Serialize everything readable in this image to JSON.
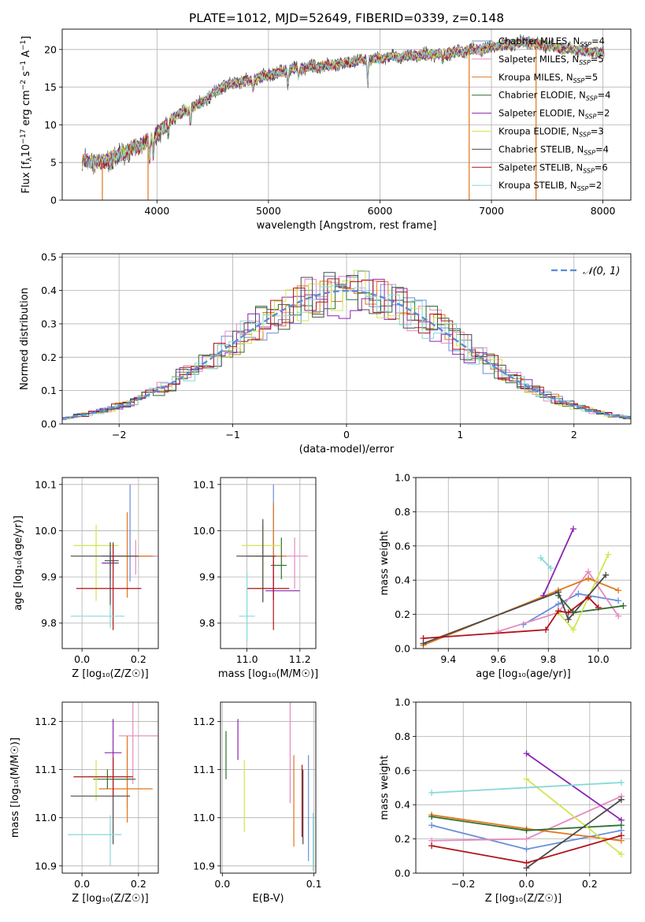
{
  "title": "PLATE=1012, MJD=52649, FIBERID=0339, z=0.148",
  "legend_top": [
    {
      "label": "Chabrier MILES, N",
      "sub": "SSP",
      "tail": "=4",
      "color": "#6a8fd8"
    },
    {
      "label": "Salpeter MILES, N",
      "sub": "SSP",
      "tail": "=5",
      "color": "#e58ac2"
    },
    {
      "label": "Kroupa MILES, N",
      "sub": "SSP",
      "tail": "=5",
      "color": "#e1761a"
    },
    {
      "label": "Chabrier ELODIE, N",
      "sub": "SSP",
      "tail": "=4",
      "color": "#2f6f2f"
    },
    {
      "label": "Salpeter ELODIE, N",
      "sub": "SSP",
      "tail": "=2",
      "color": "#8b25b0"
    },
    {
      "label": "Kroupa ELODIE, N",
      "sub": "SSP",
      "tail": "=3",
      "color": "#cfe650"
    },
    {
      "label": "Chabrier STELIB, N",
      "sub": "SSP",
      "tail": "=4",
      "color": "#4a4a4a"
    },
    {
      "label": "Salpeter STELIB, N",
      "sub": "SSP",
      "tail": "=6",
      "color": "#b1121a"
    },
    {
      "label": "Kroupa STELIB, N",
      "sub": "SSP",
      "tail": "=2",
      "color": "#86d8d8"
    }
  ],
  "legend_hist": "𝒩(0, 1)",
  "chart_data": [
    {
      "id": "spectrum",
      "type": "line",
      "xlabel": "wavelength [Angstrom, rest frame]",
      "ylabel": "Flux [f",
      "ylabel_parts": {
        "a": "Flux [f",
        "b": "λ",
        "c": "10",
        "d": "−17",
        "e": " erg cm",
        "f": "−2",
        "g": " s",
        "h": "−1",
        "i": " A",
        "j": "−1",
        "k": "]"
      },
      "xlim": [
        3150,
        8250
      ],
      "ylim": [
        0,
        22.7
      ],
      "xticks": [
        4000,
        5000,
        6000,
        7000,
        8000
      ],
      "yticks": [
        0,
        5,
        10,
        15,
        20
      ],
      "continuum_anchors": [
        [
          3330,
          5.3
        ],
        [
          3500,
          5.0
        ],
        [
          3700,
          6.2
        ],
        [
          3880,
          7.5
        ],
        [
          4000,
          8.8
        ],
        [
          4150,
          11.0
        ],
        [
          4400,
          13.0
        ],
        [
          4600,
          15.2
        ],
        [
          4900,
          16.2
        ],
        [
          5200,
          17.4
        ],
        [
          5500,
          17.8
        ],
        [
          5800,
          18.5
        ],
        [
          6100,
          19.0
        ],
        [
          6400,
          19.3
        ],
        [
          6700,
          19.6
        ],
        [
          7000,
          20.3
        ],
        [
          7300,
          21.0
        ],
        [
          7500,
          20.5
        ],
        [
          7800,
          19.9
        ],
        [
          8010,
          19.5
        ]
      ],
      "absorption_lines": [
        [
          3933,
          -2.5
        ],
        [
          3968,
          -2.5
        ],
        [
          4101,
          -1.5
        ],
        [
          4300,
          -2.0
        ],
        [
          4861,
          -1.2
        ],
        [
          5175,
          -2.0
        ],
        [
          5270,
          -1.0
        ],
        [
          5890,
          -3.0
        ],
        [
          6563,
          -1.0
        ]
      ],
      "drop_lines_x": [
        3510,
        3920,
        6800,
        7400
      ]
    },
    {
      "id": "residual_hist",
      "type": "histogram",
      "xlabel": "(data-model)/error",
      "ylabel": "Normed distribution",
      "xlim": [
        -2.5,
        2.5
      ],
      "ylim": [
        0,
        0.51
      ],
      "xticks": [
        -2,
        -1,
        0,
        1,
        2
      ],
      "yticks": [
        0.0,
        0.1,
        0.2,
        0.3,
        0.4,
        0.5
      ],
      "bin_width": 0.1,
      "peak_values": [
        0.49,
        0.46,
        0.44,
        0.43,
        0.42
      ],
      "reference": "normal",
      "reference_mu": 0,
      "reference_sigma": 1
    },
    {
      "id": "age_vs_Z",
      "type": "errorbar",
      "xlabel": "Z [log₁₀(Z/Z☉)]",
      "ylabel": "age  [log₁₀(age/yr)]",
      "xlim": [
        -0.07,
        0.27
      ],
      "ylim": [
        9.745,
        10.115
      ],
      "xticks": [
        0.0,
        0.2
      ],
      "yticks": [
        9.8,
        9.9,
        10.0,
        10.1
      ],
      "points": [
        {
          "x": 0.17,
          "y": 9.945,
          "xerr": [
            0.1,
            0.09
          ],
          "yerr": [
            0.055,
            0.155
          ]
        },
        {
          "x": 0.19,
          "y": 9.945,
          "xerr": [
            0.11,
            0.08
          ],
          "yerr": [
            0.04,
            0.035
          ]
        },
        {
          "x": 0.16,
          "y": 9.945,
          "xerr": [
            0.06,
            0.09
          ],
          "yerr": [
            0.09,
            0.095
          ]
        },
        {
          "x": 0.11,
          "y": 9.935,
          "xerr": [
            0.03,
            0.02
          ],
          "yerr": [
            0.025,
            0.04
          ]
        },
        {
          "x": 0.1,
          "y": 9.93,
          "xerr": [
            0.03,
            0.03
          ],
          "yerr": [
            0.035,
            0.025
          ]
        },
        {
          "x": 0.05,
          "y": 9.968,
          "xerr": [
            0.08,
            0.08
          ],
          "yerr": [
            0.12,
            0.045
          ]
        },
        {
          "x": 0.1,
          "y": 9.945,
          "xerr": [
            0.14,
            0.1
          ],
          "yerr": [
            0.11,
            0.03
          ]
        },
        {
          "x": 0.11,
          "y": 9.875,
          "xerr": [
            0.13,
            0.1
          ],
          "yerr": [
            0.09,
            0.095
          ]
        },
        {
          "x": 0.1,
          "y": 9.815,
          "xerr": [
            0.14,
            0.05
          ],
          "yerr": [
            0.025,
            0.025
          ]
        }
      ]
    },
    {
      "id": "age_vs_mass",
      "type": "errorbar",
      "xlabel": "mass [log₁₀(M/M☉)]",
      "ylabel": "",
      "xlim": [
        10.9,
        11.26
      ],
      "ylim": [
        9.745,
        10.115
      ],
      "xticks": [
        11.0,
        11.2
      ],
      "yticks": [
        9.8,
        9.9,
        10.0,
        10.1
      ],
      "points": [
        {
          "x": 11.1,
          "y": 9.945,
          "xerr": [
            0.07,
            0.04
          ],
          "yerr": [
            0.05,
            0.155
          ]
        },
        {
          "x": 11.18,
          "y": 9.945,
          "xerr": [
            0.06,
            0.05
          ],
          "yerr": [
            0.07,
            0.04
          ]
        },
        {
          "x": 11.1,
          "y": 9.945,
          "xerr": [
            0.1,
            0.05
          ],
          "yerr": [
            0.05,
            0.115
          ]
        },
        {
          "x": 11.13,
          "y": 9.925,
          "xerr": [
            0.04,
            0.02
          ],
          "yerr": [
            0.03,
            0.06
          ]
        },
        {
          "x": 11.1,
          "y": 9.87,
          "xerr": [
            0.03,
            0.1
          ],
          "yerr": [
            0.02,
            0.03
          ]
        },
        {
          "x": 11.06,
          "y": 9.968,
          "xerr": [
            0.08,
            0.07
          ],
          "yerr": [
            0.12,
            0.045
          ]
        },
        {
          "x": 11.06,
          "y": 9.945,
          "xerr": [
            0.1,
            0.05
          ],
          "yerr": [
            0.1,
            0.08
          ]
        },
        {
          "x": 11.1,
          "y": 9.875,
          "xerr": [
            0.1,
            0.06
          ],
          "yerr": [
            0.09,
            0.07
          ]
        },
        {
          "x": 11.0,
          "y": 9.815,
          "xerr": [
            0.03,
            0.03
          ],
          "yerr": [
            0.055,
            0.095
          ]
        }
      ]
    },
    {
      "id": "massweight_vs_age",
      "type": "line",
      "xlabel": "age  [log₁₀(age/yr)]",
      "ylabel": "mass weight",
      "xlim": [
        9.27,
        10.13
      ],
      "ylim": [
        0,
        1.0
      ],
      "xticks": [
        9.4,
        9.6,
        9.8,
        10.0
      ],
      "yticks": [
        0.0,
        0.2,
        0.4,
        0.6,
        0.8,
        1.0
      ],
      "series": [
        {
          "x": [
            9.7,
            9.84,
            9.92,
            10.08
          ],
          "y": [
            0.14,
            0.26,
            0.32,
            0.28
          ]
        },
        {
          "x": [
            9.6,
            9.84,
            9.96,
            10.08
          ],
          "y": [
            0.1,
            0.21,
            0.45,
            0.19
          ]
        },
        {
          "x": [
            9.3,
            9.84,
            9.96,
            10.08
          ],
          "y": [
            0.02,
            0.34,
            0.41,
            0.34
          ]
        },
        {
          "x": [
            9.84,
            9.9,
            10.1
          ],
          "y": [
            0.31,
            0.21,
            0.25
          ]
        },
        {
          "x": [
            9.78,
            9.9
          ],
          "y": [
            0.31,
            0.7
          ]
        },
        {
          "x": [
            9.84,
            9.9,
            10.04
          ],
          "y": [
            0.21,
            0.11,
            0.55
          ]
        },
        {
          "x": [
            9.3,
            9.84,
            9.88,
            10.03
          ],
          "y": [
            0.03,
            0.33,
            0.17,
            0.43
          ]
        },
        {
          "x": [
            9.3,
            9.79,
            9.84,
            9.88,
            9.96,
            10.0
          ],
          "y": [
            0.06,
            0.11,
            0.22,
            0.21,
            0.3,
            0.24
          ]
        },
        {
          "x": [
            9.77,
            9.81
          ],
          "y": [
            0.53,
            0.47
          ]
        }
      ]
    },
    {
      "id": "mass_vs_Z",
      "type": "errorbar",
      "xlabel": "Z [log₁₀(Z/Z☉)]",
      "ylabel": "mass [log₁₀(M/M☉)]",
      "xlim": [
        -0.07,
        0.27
      ],
      "ylim": [
        10.885,
        11.24
      ],
      "xticks": [
        0.0,
        0.2
      ],
      "yticks": [
        10.9,
        11.0,
        11.1,
        11.2
      ],
      "points": [
        {
          "x": 0.16,
          "y": 11.08,
          "xerr": [
            0.06,
            0.02
          ],
          "yerr": [
            0.06,
            0.06
          ]
        },
        {
          "x": 0.18,
          "y": 11.17,
          "xerr": [
            0.05,
            0.09
          ],
          "yerr": [
            0.1,
            0.07
          ]
        },
        {
          "x": 0.16,
          "y": 11.06,
          "xerr": [
            0.1,
            0.09
          ],
          "yerr": [
            0.07,
            0.11
          ]
        },
        {
          "x": 0.09,
          "y": 11.08,
          "xerr": [
            0.05,
            0.1
          ],
          "yerr": [
            0.02,
            0.02
          ]
        },
        {
          "x": 0.11,
          "y": 11.135,
          "xerr": [
            0.03,
            0.03
          ],
          "yerr": [
            0.04,
            0.07
          ]
        },
        {
          "x": 0.05,
          "y": 11.085,
          "xerr": [
            0.03,
            0.06
          ],
          "yerr": [
            0.05,
            0.035
          ]
        },
        {
          "x": 0.11,
          "y": 11.045,
          "xerr": [
            0.15,
            0.06
          ],
          "yerr": [
            0.1,
            0.05
          ]
        },
        {
          "x": 0.11,
          "y": 11.085,
          "xerr": [
            0.14,
            0.07
          ],
          "yerr": [
            0.04,
            0.04
          ]
        },
        {
          "x": 0.1,
          "y": 10.965,
          "xerr": [
            0.15,
            0.04
          ],
          "yerr": [
            0.065,
            0.04
          ]
        }
      ]
    },
    {
      "id": "mass_vs_ebv",
      "type": "errorbar",
      "xlabel": "E(B-V)",
      "ylabel": "",
      "xlim": [
        -0.002,
        0.102
      ],
      "ylim": [
        10.885,
        11.24
      ],
      "xticks": [
        0.0,
        0.1
      ],
      "yticks": [
        10.9,
        11.0,
        11.1,
        11.2
      ],
      "points": [
        {
          "x": 0.094,
          "y": 11.04,
          "xerr": [
            0,
            0
          ],
          "yerr": [
            0.13,
            0.09
          ]
        },
        {
          "x": 0.074,
          "y": 11.17,
          "xerr": [
            0,
            0
          ],
          "yerr": [
            0.14,
            0.07
          ]
        },
        {
          "x": 0.078,
          "y": 11.04,
          "xerr": [
            0,
            0
          ],
          "yerr": [
            0.1,
            0.09
          ]
        },
        {
          "x": 0.004,
          "y": 11.13,
          "xerr": [
            0,
            0
          ],
          "yerr": [
            0.05,
            0.05
          ]
        },
        {
          "x": 0.017,
          "y": 11.16,
          "xerr": [
            0,
            0
          ],
          "yerr": [
            0.04,
            0.045
          ]
        },
        {
          "x": 0.024,
          "y": 11.05,
          "xerr": [
            0,
            0
          ],
          "yerr": [
            0.08,
            0.07
          ]
        },
        {
          "x": 0.088,
          "y": 11.04,
          "xerr": [
            0,
            0
          ],
          "yerr": [
            0.095,
            0.06
          ]
        },
        {
          "x": 0.087,
          "y": 11.06,
          "xerr": [
            0,
            0
          ],
          "yerr": [
            0.1,
            0.05
          ]
        },
        {
          "x": 0.099,
          "y": 10.95,
          "xerr": [
            0,
            0
          ],
          "yerr": [
            0.06,
            0.06
          ]
        }
      ]
    },
    {
      "id": "massweight_vs_Z",
      "type": "line",
      "xlabel": "Z [log₁₀(Z/Z☉)]",
      "ylabel": "mass weight",
      "xlim": [
        -0.35,
        0.33
      ],
      "ylim": [
        0,
        1.0
      ],
      "xticks": [
        -0.2,
        0.0,
        0.2
      ],
      "yticks": [
        0.0,
        0.2,
        0.4,
        0.6,
        0.8,
        1.0
      ],
      "series": [
        {
          "x": [
            -0.3,
            0.0,
            0.3
          ],
          "y": [
            0.28,
            0.14,
            0.25
          ]
        },
        {
          "x": [
            -0.3,
            0.0,
            0.3
          ],
          "y": [
            0.19,
            0.2,
            0.45
          ]
        },
        {
          "x": [
            -0.3,
            0.0,
            0.3
          ],
          "y": [
            0.34,
            0.26,
            0.19
          ]
        },
        {
          "x": [
            -0.3,
            0.0,
            0.3
          ],
          "y": [
            0.33,
            0.25,
            0.28
          ]
        },
        {
          "x": [
            0.0,
            0.3
          ],
          "y": [
            0.7,
            0.31
          ]
        },
        {
          "x": [
            0.0,
            0.3
          ],
          "y": [
            0.55,
            0.11
          ]
        },
        {
          "x": [
            0.0,
            0.3
          ],
          "y": [
            0.03,
            0.43
          ]
        },
        {
          "x": [
            -0.3,
            0.0,
            0.3
          ],
          "y": [
            0.16,
            0.06,
            0.22
          ]
        },
        {
          "x": [
            -0.3,
            0.3
          ],
          "y": [
            0.47,
            0.53
          ]
        }
      ]
    }
  ]
}
